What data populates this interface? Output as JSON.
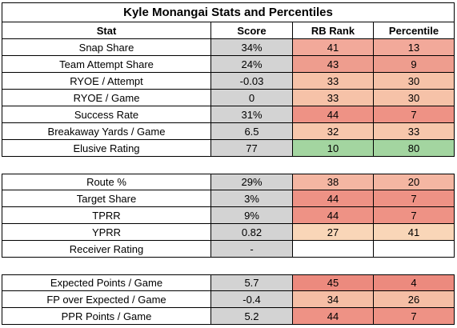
{
  "title": "Kyle Monangai Stats and Percentiles",
  "headers": [
    "Stat",
    "Score",
    "RB Rank",
    "Percentile"
  ],
  "colors": {
    "score_bg": "#d3d3d3",
    "rank_dark": "#ee9285",
    "rank_mid": "#f2a99a",
    "rank_light": "#f6c2a8",
    "rank_green": "#a3d5a0"
  },
  "sections": [
    {
      "rows": [
        {
          "stat": "Snap Share",
          "score": "34%",
          "rank": "41",
          "percentile": "13",
          "rank_color": "#f2a99a",
          "pct_color": "#f2a99a"
        },
        {
          "stat": "Team Attempt Share",
          "score": "24%",
          "rank": "43",
          "percentile": "9",
          "rank_color": "#ee9d8e",
          "pct_color": "#ee9d8e"
        },
        {
          "stat": "RYOE / Attempt",
          "score": "-0.03",
          "rank": "33",
          "percentile": "30",
          "rank_color": "#f6c2a8",
          "pct_color": "#f6c2a8"
        },
        {
          "stat": "RYOE / Game",
          "score": "0",
          "rank": "33",
          "percentile": "30",
          "rank_color": "#f6c2a8",
          "pct_color": "#f6c2a8"
        },
        {
          "stat": "Success Rate",
          "score": "31%",
          "rank": "44",
          "percentile": "7",
          "rank_color": "#ee9285",
          "pct_color": "#ee9285"
        },
        {
          "stat": "Breakaway Yards / Game",
          "score": "6.5",
          "rank": "32",
          "percentile": "33",
          "rank_color": "#f7c7ac",
          "pct_color": "#f7c7ac"
        },
        {
          "stat": "Elusive Rating",
          "score": "77",
          "rank": "10",
          "percentile": "80",
          "rank_color": "#a3d5a0",
          "pct_color": "#a3d5a0"
        }
      ]
    },
    {
      "rows": [
        {
          "stat": "Route %",
          "score": "29%",
          "rank": "38",
          "percentile": "20",
          "rank_color": "#f4b6a2",
          "pct_color": "#f4b6a2"
        },
        {
          "stat": "Target Share",
          "score": "3%",
          "rank": "44",
          "percentile": "7",
          "rank_color": "#ee9285",
          "pct_color": "#ee9285"
        },
        {
          "stat": "TPRR",
          "score": "9%",
          "rank": "44",
          "percentile": "7",
          "rank_color": "#ee9285",
          "pct_color": "#ee9285"
        },
        {
          "stat": "YPRR",
          "score": "0.82",
          "rank": "27",
          "percentile": "41",
          "rank_color": "#f9d6b8",
          "pct_color": "#f9d6b8"
        },
        {
          "stat": "Receiver Rating",
          "score": "-",
          "rank": "",
          "percentile": "",
          "rank_color": "#ffffff",
          "pct_color": "#ffffff"
        }
      ]
    },
    {
      "rows": [
        {
          "stat": "Expected Points / Game",
          "score": "5.7",
          "rank": "45",
          "percentile": "4",
          "rank_color": "#ec8a7e",
          "pct_color": "#ec8a7e"
        },
        {
          "stat": "FP over Expected / Game",
          "score": "-0.4",
          "rank": "34",
          "percentile": "26",
          "rank_color": "#f5bea5",
          "pct_color": "#f5bea5"
        },
        {
          "stat": "PPR Points / Game",
          "score": "5.2",
          "rank": "44",
          "percentile": "7",
          "rank_color": "#ee9285",
          "pct_color": "#ee9285"
        }
      ]
    }
  ]
}
